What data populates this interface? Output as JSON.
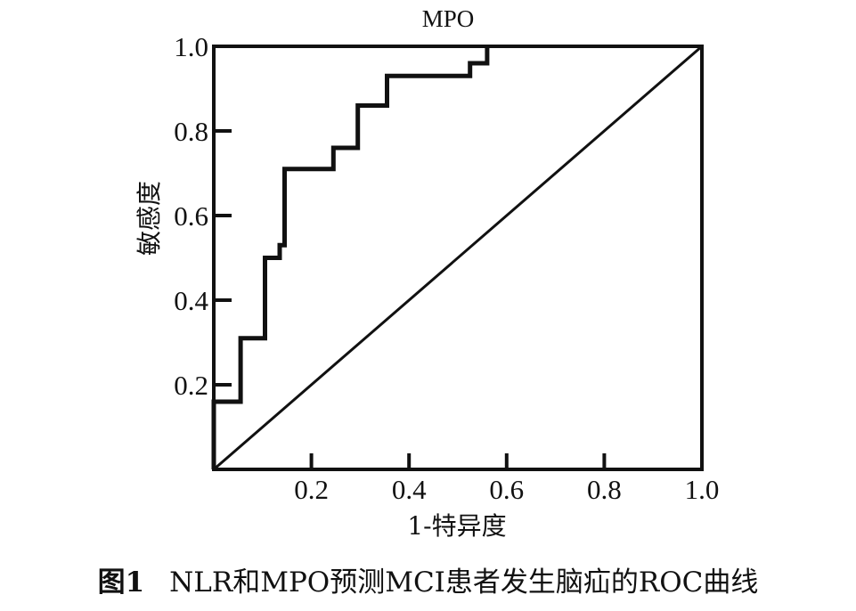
{
  "caption": {
    "number": "图1",
    "text": "NLR和MPO预测MCI患者发生脑疝的ROC曲线"
  },
  "chart_data": {
    "type": "line",
    "title": "MPO",
    "xlabel": "1-特异度",
    "ylabel": "敏感度",
    "xlim": [
      0,
      1
    ],
    "ylim": [
      0,
      1
    ],
    "xticks": [
      0.2,
      0.4,
      0.6,
      0.8,
      1.0
    ],
    "yticks": [
      0.2,
      0.4,
      0.6,
      0.8,
      1.0
    ],
    "xtick_labels": [
      "0.2",
      "0.4",
      "0.6",
      "0.8",
      "1.0"
    ],
    "ytick_labels": [
      "0.2",
      "0.4",
      "0.6",
      "0.8",
      "1.0"
    ],
    "grid": false,
    "colors": {
      "line": "#111111",
      "reference": "#111111"
    },
    "series": [
      {
        "x": [
          0,
          0,
          0.055,
          0.055,
          0.105,
          0.105,
          0.135,
          0.135,
          0.145,
          0.145,
          0.245,
          0.245,
          0.295,
          0.295,
          0.355,
          0.355,
          0.525,
          0.525,
          0.56,
          0.56
        ],
        "y": [
          0,
          0.16,
          0.16,
          0.31,
          0.31,
          0.5,
          0.5,
          0.53,
          0.53,
          0.71,
          0.71,
          0.76,
          0.76,
          0.86,
          0.86,
          0.93,
          0.93,
          0.96,
          0.96,
          1.0
        ]
      }
    ],
    "reference_line": {
      "x": [
        0,
        1
      ],
      "y": [
        0,
        1
      ]
    }
  }
}
